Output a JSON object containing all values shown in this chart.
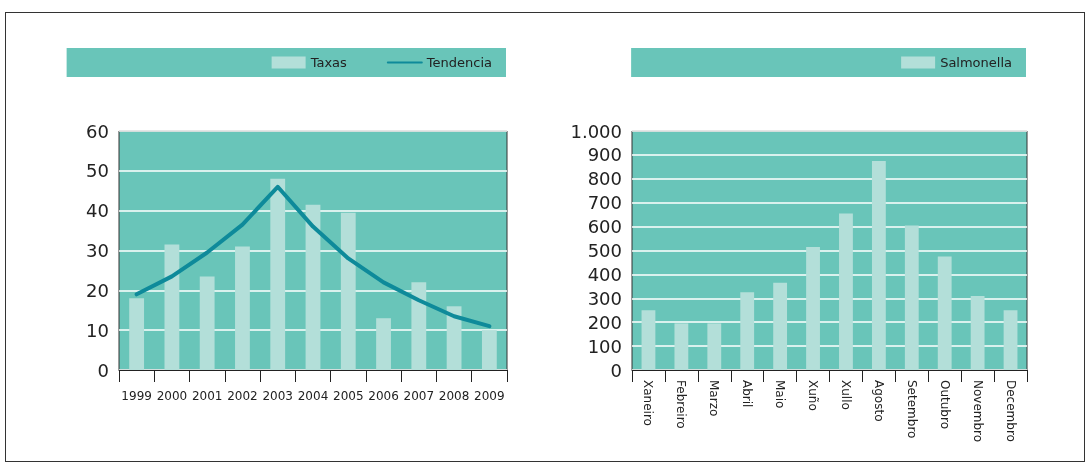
{
  "chart_data": [
    {
      "type": "bar",
      "categories": [
        "1999",
        "2000",
        "2001",
        "2002",
        "2003",
        "2004",
        "2005",
        "2006",
        "2007",
        "2008",
        "2009"
      ],
      "series": [
        {
          "name": "Taxas",
          "color": "#b3dfd9",
          "values": [
            18,
            31.5,
            23.5,
            31,
            48,
            41.5,
            39.5,
            13,
            22,
            16,
            10
          ]
        },
        {
          "name": "Tendencia",
          "type": "line",
          "color": "#0e8a9a",
          "values": [
            19,
            23.5,
            29.5,
            36.5,
            46,
            36,
            28,
            22,
            17.5,
            13.5,
            11
          ]
        }
      ],
      "ylim": [
        0,
        60
      ],
      "yticks": [
        0,
        10,
        20,
        30,
        40,
        50,
        60
      ],
      "grid": "y",
      "legend": "top right",
      "marker": "none"
    },
    {
      "type": "bar",
      "categories": [
        "Xaneiro",
        "Febreiro",
        "Marzo",
        "Abril",
        "Maio",
        "Xuño",
        "Xullo",
        "Agosto",
        "Setembro",
        "Outubro",
        "Novembro",
        "Decembro"
      ],
      "series": [
        {
          "name": "Salmonella",
          "color": "#b3dfd9",
          "values": [
            250,
            195,
            195,
            325,
            365,
            515,
            655,
            875,
            605,
            475,
            310,
            250
          ]
        }
      ],
      "ylim": [
        0,
        1000
      ],
      "yticks": [
        0,
        100,
        200,
        300,
        400,
        500,
        600,
        700,
        800,
        900,
        {
          "value": 1000,
          "label": "1.000"
        }
      ],
      "grid": "y",
      "legend": "top right"
    }
  ]
}
